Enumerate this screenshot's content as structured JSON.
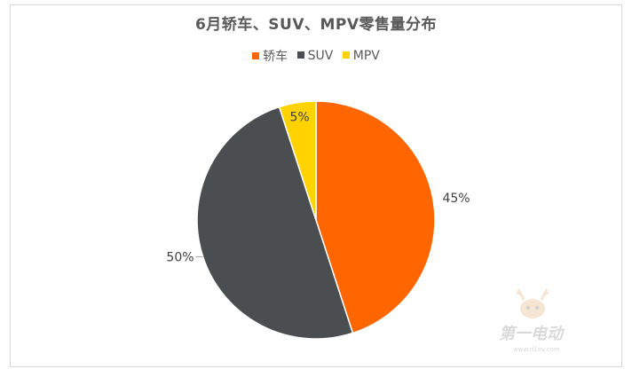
{
  "chart_data": {
    "type": "pie",
    "title": "6月轿车、SUV、MPV零售量分布",
    "legend_position": "top",
    "categories": [
      "轿车",
      "SUV",
      "MPV"
    ],
    "values": [
      45,
      50,
      5
    ],
    "labels": [
      "45%",
      "50%",
      "5%"
    ],
    "colors": [
      "#ff6600",
      "#4a4e51",
      "#ffd200"
    ],
    "start_angle_deg": 0,
    "direction": "clockwise"
  },
  "watermark": {
    "text": "第一电动",
    "url": "www.d1ev.com"
  }
}
